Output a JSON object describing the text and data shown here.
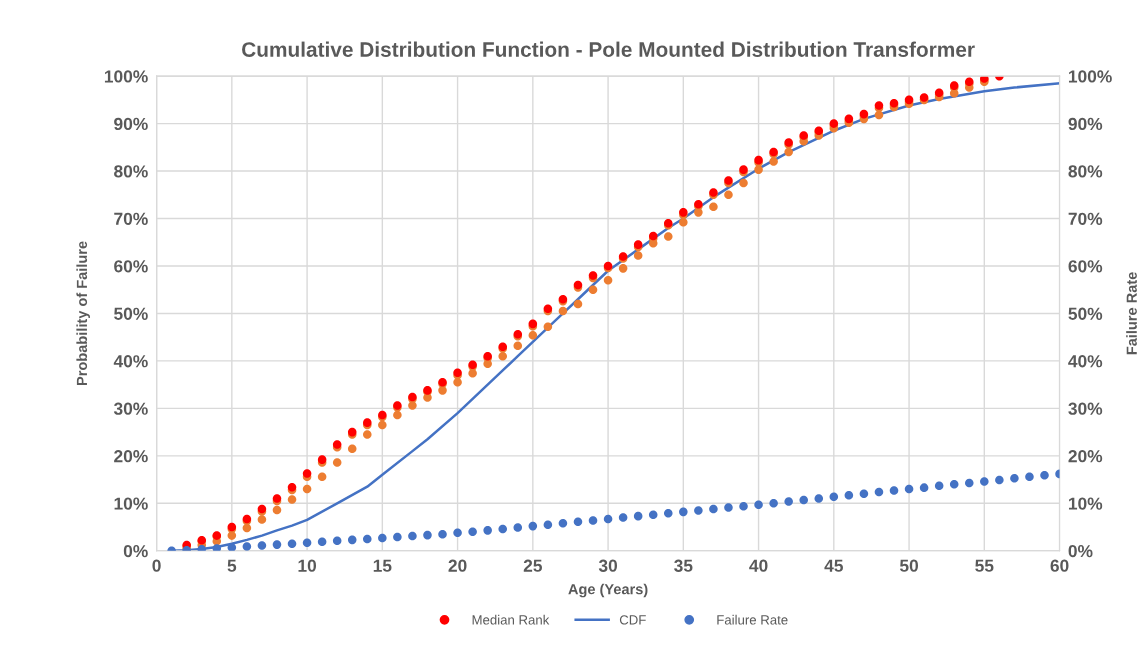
{
  "chart_data": {
    "type": "scatter",
    "title": "Cumulative Distribution Function - Pole Mounted Distribution Transformer",
    "xlabel": "Age (Years)",
    "ylabel": "Probability of Failure",
    "y2label": "Failure Rate",
    "xlim": [
      0,
      60
    ],
    "xticks": [
      0,
      5,
      10,
      15,
      20,
      25,
      30,
      35,
      40,
      45,
      50,
      55,
      60
    ],
    "ylim": [
      0,
      100
    ],
    "yticks": [
      {
        "value": 0,
        "label": "0%"
      },
      {
        "value": 10,
        "label": "10%"
      },
      {
        "value": 20,
        "label": "20%"
      },
      {
        "value": 30,
        "label": "30%"
      },
      {
        "value": 40,
        "label": "40%"
      },
      {
        "value": 50,
        "label": "50%"
      },
      {
        "value": 60,
        "label": "60%"
      },
      {
        "value": 70,
        "label": "70%"
      },
      {
        "value": 80,
        "label": "80%"
      },
      {
        "value": 90,
        "label": "90%"
      },
      {
        "value": 100,
        "label": "100%"
      }
    ],
    "y2lim": [
      0,
      100
    ],
    "y2ticks": [
      {
        "value": 0,
        "label": "0%"
      },
      {
        "value": 10,
        "label": "10%"
      },
      {
        "value": 20,
        "label": "20%"
      },
      {
        "value": 30,
        "label": "30%"
      },
      {
        "value": 40,
        "label": "40%"
      },
      {
        "value": 50,
        "label": "50%"
      },
      {
        "value": 60,
        "label": "60%"
      },
      {
        "value": 70,
        "label": "70%"
      },
      {
        "value": 80,
        "label": "80%"
      },
      {
        "value": 90,
        "label": "90%"
      },
      {
        "value": 100,
        "label": "100%"
      }
    ],
    "grid": true,
    "legend": "bottom",
    "marker": "circle",
    "series": [
      {
        "color": "#ed7d31",
        "x": [
          2,
          3,
          4,
          5,
          6,
          7,
          8,
          9,
          10,
          11,
          12,
          13,
          14,
          15,
          16,
          17,
          18,
          19,
          20,
          21,
          22,
          23,
          24,
          25,
          26,
          27,
          28,
          29,
          30,
          31,
          32,
          33,
          34,
          35,
          36,
          37,
          38,
          39,
          40,
          41,
          42,
          43,
          44,
          45,
          46,
          47,
          48,
          49,
          50,
          51,
          52,
          53,
          54,
          55,
          2,
          3,
          4,
          5,
          6,
          7,
          8,
          9,
          10,
          11,
          12,
          13,
          14,
          15,
          16,
          17,
          18,
          19,
          20,
          21,
          22,
          23,
          24,
          25,
          26,
          27,
          28,
          29,
          30,
          31,
          32,
          33,
          34,
          35,
          36,
          37,
          38,
          39,
          40,
          41,
          42,
          43,
          44,
          45,
          46,
          47,
          48,
          49,
          50,
          51,
          52,
          53,
          54,
          55
        ],
        "values": [
          0.5,
          1.2,
          2,
          3.2,
          4.8,
          6.6,
          8.6,
          10.8,
          13,
          15.6,
          18.6,
          21.5,
          24.5,
          26.5,
          28.6,
          30.6,
          32.3,
          33.8,
          35.5,
          37.4,
          39.4,
          41,
          43.2,
          45.4,
          47.2,
          50.5,
          52,
          55,
          57,
          59.5,
          62.2,
          64.8,
          66.2,
          69.2,
          71.3,
          72.5,
          75,
          77.5,
          80.3,
          82,
          84,
          86.3,
          87.5,
          89,
          90.2,
          91,
          91.8,
          93.5,
          94.2,
          95,
          95.6,
          96.4,
          97.6,
          98.8,
          1,
          2,
          3,
          4.6,
          6.3,
          8.3,
          10.5,
          12.8,
          15.6,
          18.6,
          21.8,
          24.5,
          26.5,
          28.2,
          30.2,
          32,
          33.5,
          35.2,
          37,
          38.8,
          40.6,
          42.6,
          45.2,
          47.3,
          50.5,
          52.6,
          55.5,
          57.5,
          59.6,
          61.6,
          64,
          65.8,
          68.6,
          70.8,
          72.6,
          75,
          77.5,
          79.8,
          81.8,
          83.6,
          85.6,
          87.1,
          88.1,
          89.6,
          90.6,
          91.6,
          93.3,
          93.9,
          94.6,
          95.1,
          96.1,
          97.6,
          98.4,
          99.2
        ]
      },
      {
        "name": "Median Rank",
        "color": "#ff0000",
        "x": [
          2,
          3,
          4,
          5,
          6,
          7,
          8,
          9,
          10,
          11,
          12,
          13,
          14,
          15,
          16,
          17,
          18,
          19,
          20,
          21,
          22,
          23,
          24,
          25,
          26,
          27,
          28,
          29,
          30,
          31,
          32,
          33,
          34,
          35,
          36,
          37,
          38,
          39,
          40,
          41,
          42,
          43,
          44,
          45,
          46,
          47,
          48,
          49,
          50,
          51,
          52,
          53,
          54,
          55,
          56
        ],
        "values": [
          1.2,
          2.2,
          3.2,
          5,
          6.7,
          8.8,
          11,
          13.4,
          16.3,
          19.2,
          22.4,
          25,
          27,
          28.6,
          30.6,
          32.4,
          33.8,
          35.5,
          37.5,
          39.2,
          41,
          43,
          45.6,
          47.8,
          51,
          53,
          56,
          58,
          60,
          62,
          64.5,
          66.3,
          69,
          71.3,
          73,
          75.5,
          78,
          80.3,
          82.3,
          84,
          86,
          87.5,
          88.5,
          90,
          91,
          92,
          93.8,
          94.3,
          95,
          95.5,
          96.5,
          98,
          98.8,
          99.5,
          100
        ]
      },
      {
        "type": "line",
        "name": "CDF",
        "color": "#4472c4",
        "marker": "none",
        "x": [
          1,
          2,
          3,
          4,
          5,
          6,
          7,
          8,
          9,
          10,
          12,
          14,
          15,
          17,
          18,
          20,
          22,
          23,
          24,
          25,
          26,
          27,
          28,
          30,
          32,
          34,
          35,
          37,
          38,
          40,
          42,
          44,
          45,
          47,
          50,
          52,
          55,
          57,
          60
        ],
        "values": [
          0,
          0.1,
          0.4,
          0.8,
          1.5,
          2.3,
          3.2,
          4.3,
          5.3,
          6.5,
          10,
          13.5,
          16,
          21,
          23.5,
          29,
          35,
          38,
          41,
          44,
          47,
          50,
          53,
          59,
          63.5,
          68,
          70,
          74.5,
          76.5,
          80.5,
          84,
          87,
          88.5,
          91,
          93.8,
          95.2,
          96.8,
          97.6,
          98.5
        ]
      },
      {
        "name": "Failure Rate",
        "color": "#4472c4",
        "axis": "y2",
        "x": [
          1,
          2,
          3,
          4,
          5,
          6,
          7,
          8,
          9,
          10,
          11,
          12,
          13,
          14,
          15,
          16,
          17,
          18,
          19,
          20,
          21,
          22,
          23,
          24,
          25,
          26,
          27,
          28,
          29,
          30,
          31,
          32,
          33,
          34,
          35,
          36,
          37,
          38,
          39,
          40,
          41,
          42,
          43,
          44,
          45,
          46,
          47,
          48,
          49,
          50,
          51,
          52,
          53,
          54,
          55,
          56,
          57,
          58,
          59,
          60
        ],
        "values": [
          0,
          0.1,
          0.3,
          0.5,
          0.7,
          0.9,
          1.1,
          1.3,
          1.5,
          1.7,
          1.9,
          2.1,
          2.3,
          2.5,
          2.7,
          2.9,
          3.1,
          3.3,
          3.5,
          3.8,
          4.0,
          4.3,
          4.6,
          4.9,
          5.2,
          5.5,
          5.8,
          6.1,
          6.4,
          6.7,
          7.0,
          7.3,
          7.6,
          7.9,
          8.2,
          8.5,
          8.8,
          9.1,
          9.4,
          9.7,
          10.0,
          10.4,
          10.7,
          11.0,
          11.4,
          11.7,
          12.0,
          12.4,
          12.7,
          13.0,
          13.3,
          13.7,
          14.0,
          14.3,
          14.6,
          14.9,
          15.3,
          15.6,
          15.9,
          16.2
        ]
      }
    ]
  }
}
